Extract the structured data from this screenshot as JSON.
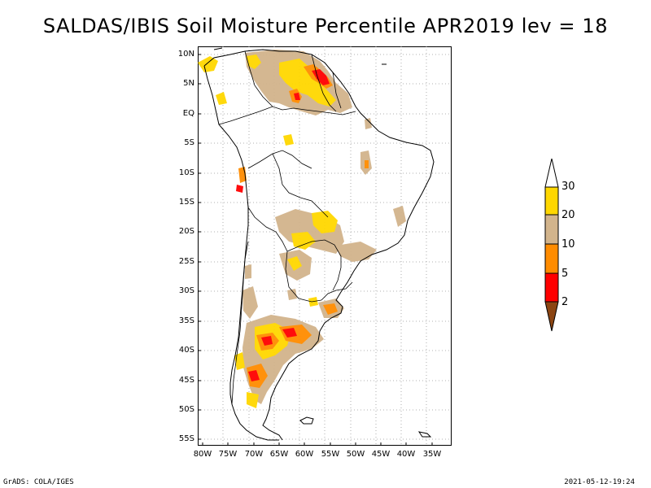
{
  "title": "SALDAS/IBIS Soil Moisture Percentile APR2019 lev = 18",
  "axes": {
    "lat_labels": [
      "10N",
      "5N",
      "EQ",
      "5S",
      "10S",
      "15S",
      "20S",
      "25S",
      "30S",
      "35S",
      "40S",
      "45S",
      "50S",
      "55S"
    ],
    "lon_labels": [
      "80W",
      "75W",
      "70W",
      "65W",
      "60W",
      "55W",
      "50W",
      "45W",
      "40W",
      "35W"
    ]
  },
  "legend": {
    "labels": [
      "30",
      "20",
      "10",
      "5",
      "2"
    ],
    "colors": [
      "#ffffff",
      "#ffd700",
      "#d2b48c",
      "#ff8c00",
      "#ff0000",
      "#8b4513"
    ]
  },
  "footer": {
    "left": "GrADS: COLA/IGES",
    "right": "2021-05-12-19:24"
  }
}
